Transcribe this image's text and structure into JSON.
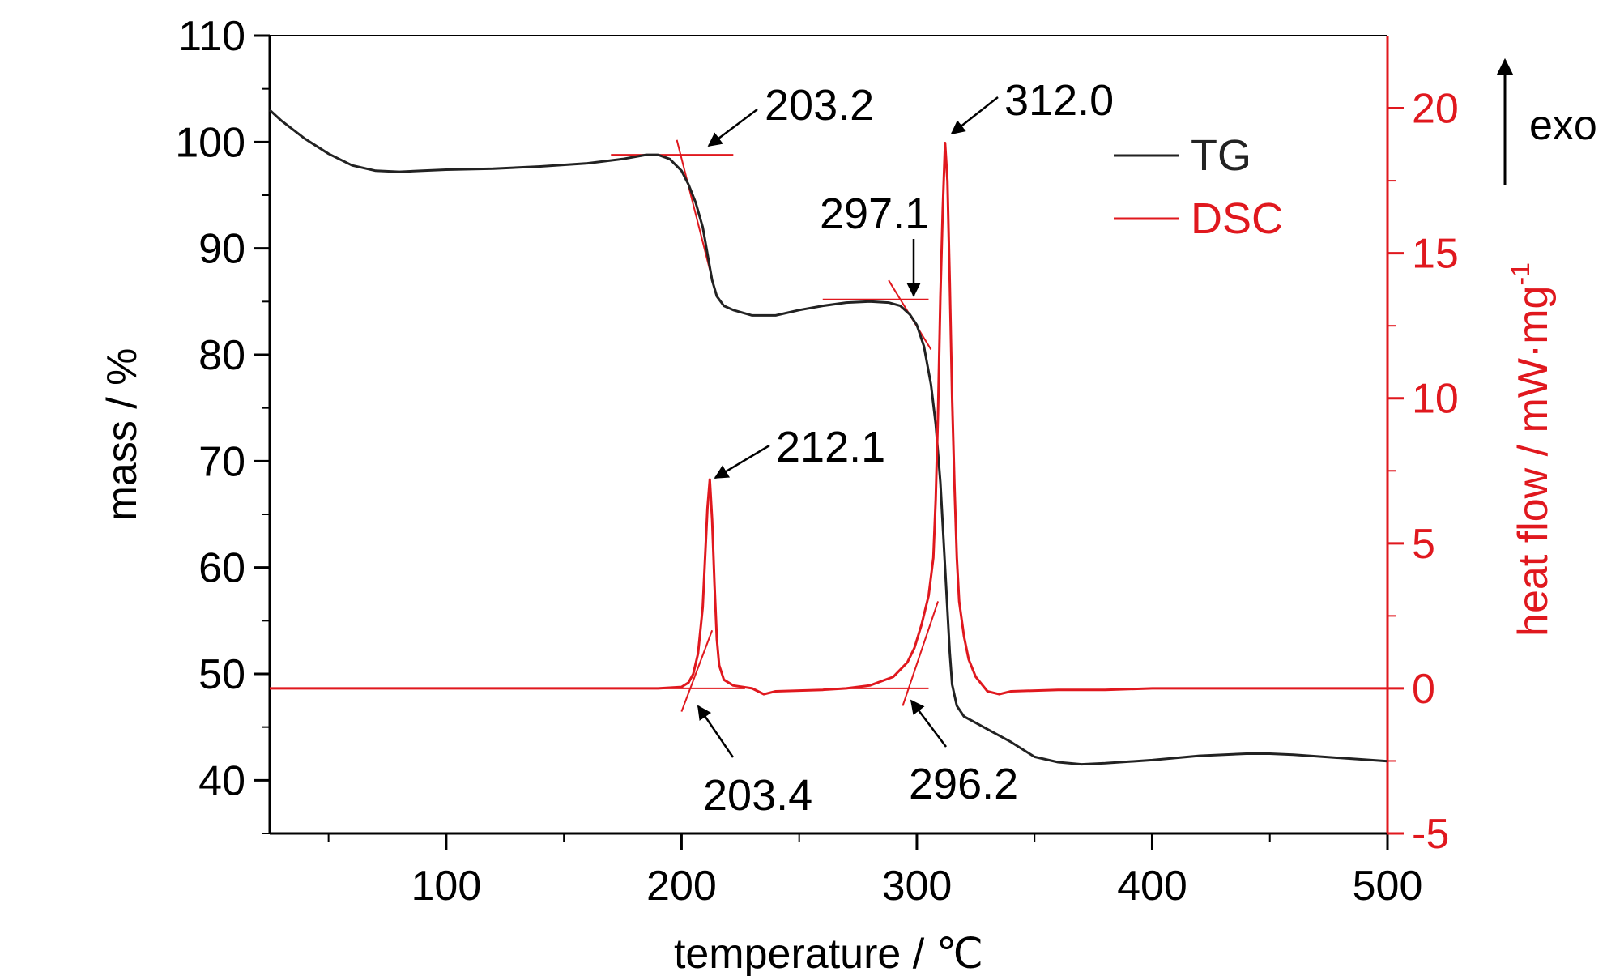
{
  "chart_data": {
    "type": "line",
    "xlabel": "temperature / ℃",
    "ylabel_left": "mass / %",
    "ylabel_right": "heat flow / mW·mg",
    "ylabel_right_sup": "-1",
    "exo_label": "exo",
    "xlim": [
      25,
      500
    ],
    "ylim_left": [
      35,
      110
    ],
    "ylim_right": [
      -5,
      22.5
    ],
    "x_ticks": [
      100,
      200,
      300,
      400,
      500
    ],
    "y_left_ticks": [
      40,
      50,
      60,
      70,
      80,
      90,
      100,
      110
    ],
    "y_right_ticks": [
      -5,
      0,
      5,
      10,
      15,
      20
    ],
    "colors": {
      "tg": "#222222",
      "dsc": "#e0181e"
    },
    "legend_position": "top-right",
    "series": [
      {
        "name": "TG",
        "axis": "left",
        "points": [
          [
            25,
            103
          ],
          [
            30,
            102
          ],
          [
            40,
            100.3
          ],
          [
            50,
            98.9
          ],
          [
            60,
            97.8
          ],
          [
            70,
            97.3
          ],
          [
            80,
            97.2
          ],
          [
            90,
            97.3
          ],
          [
            100,
            97.4
          ],
          [
            120,
            97.5
          ],
          [
            140,
            97.7
          ],
          [
            160,
            98.0
          ],
          [
            175,
            98.4
          ],
          [
            185,
            98.8
          ],
          [
            190,
            98.8
          ],
          [
            195,
            98.4
          ],
          [
            200,
            97.3
          ],
          [
            203,
            96.0
          ],
          [
            206,
            94.3
          ],
          [
            209,
            92.0
          ],
          [
            211,
            89.5
          ],
          [
            213,
            87.0
          ],
          [
            215,
            85.5
          ],
          [
            218,
            84.6
          ],
          [
            222,
            84.2
          ],
          [
            230,
            83.7
          ],
          [
            240,
            83.7
          ],
          [
            250,
            84.2
          ],
          [
            260,
            84.6
          ],
          [
            270,
            84.9
          ],
          [
            280,
            85.0
          ],
          [
            288,
            84.9
          ],
          [
            293,
            84.6
          ],
          [
            297,
            83.8
          ],
          [
            300,
            82.8
          ],
          [
            303,
            80.8
          ],
          [
            306,
            77.2
          ],
          [
            308,
            73.5
          ],
          [
            310,
            68
          ],
          [
            311,
            64
          ],
          [
            312,
            60
          ],
          [
            313,
            56
          ],
          [
            314,
            52
          ],
          [
            315,
            49
          ],
          [
            317,
            47
          ],
          [
            320,
            46
          ],
          [
            330,
            44.8
          ],
          [
            340,
            43.6
          ],
          [
            350,
            42.2
          ],
          [
            360,
            41.7
          ],
          [
            370,
            41.5
          ],
          [
            380,
            41.6
          ],
          [
            400,
            41.9
          ],
          [
            420,
            42.3
          ],
          [
            440,
            42.5
          ],
          [
            450,
            42.5
          ],
          [
            460,
            42.4
          ],
          [
            480,
            42.1
          ],
          [
            500,
            41.8
          ]
        ]
      },
      {
        "name": "DSC",
        "axis": "right",
        "points": [
          [
            25,
            0.0
          ],
          [
            60,
            0.0
          ],
          [
            100,
            0.0
          ],
          [
            150,
            0.0
          ],
          [
            190,
            0.0
          ],
          [
            200,
            0.05
          ],
          [
            203,
            0.2
          ],
          [
            205,
            0.5
          ],
          [
            207,
            1.2
          ],
          [
            209,
            2.8
          ],
          [
            210,
            4.5
          ],
          [
            211,
            6.2
          ],
          [
            212,
            7.2
          ],
          [
            213,
            5.8
          ],
          [
            214,
            3.6
          ],
          [
            215,
            1.7
          ],
          [
            216,
            0.8
          ],
          [
            218,
            0.3
          ],
          [
            222,
            0.1
          ],
          [
            230,
            0.0
          ],
          [
            235,
            -0.2
          ],
          [
            240,
            -0.1
          ],
          [
            260,
            -0.05
          ],
          [
            270,
            0.0
          ],
          [
            280,
            0.1
          ],
          [
            290,
            0.4
          ],
          [
            296,
            0.9
          ],
          [
            299,
            1.4
          ],
          [
            302,
            2.2
          ],
          [
            305,
            3.2
          ],
          [
            307,
            4.5
          ],
          [
            308,
            6.5
          ],
          [
            309,
            9.5
          ],
          [
            310,
            13.5
          ],
          [
            311,
            16.5
          ],
          [
            312,
            18.8
          ],
          [
            313,
            17.5
          ],
          [
            314,
            14
          ],
          [
            315,
            10
          ],
          [
            316,
            7
          ],
          [
            317,
            4.5
          ],
          [
            318,
            3
          ],
          [
            320,
            1.8
          ],
          [
            322,
            1
          ],
          [
            325,
            0.4
          ],
          [
            330,
            -0.1
          ],
          [
            335,
            -0.2
          ],
          [
            340,
            -0.1
          ],
          [
            360,
            -0.05
          ],
          [
            380,
            -0.05
          ],
          [
            400,
            0.0
          ],
          [
            420,
            0.0
          ],
          [
            450,
            0.0
          ],
          [
            480,
            0.0
          ],
          [
            500,
            0.0
          ]
        ]
      }
    ],
    "annotations": [
      {
        "text": "203.2",
        "x": 203.2,
        "target_axis": "left",
        "target_y": 98.6
      },
      {
        "text": "312.0",
        "x": 312.0,
        "target_axis": "right",
        "target_y": 18.8
      },
      {
        "text": "297.1",
        "x": 297.1,
        "target_axis": "left",
        "target_y": 84.9
      },
      {
        "text": "212.1",
        "x": 212.1,
        "target_axis": "right",
        "target_y": 7.2
      },
      {
        "text": "203.4",
        "x": 203.4,
        "target_axis": "right",
        "target_y": 0.0
      },
      {
        "text": "296.2",
        "x": 296.2,
        "target_axis": "right",
        "target_y": 0.0
      }
    ]
  }
}
